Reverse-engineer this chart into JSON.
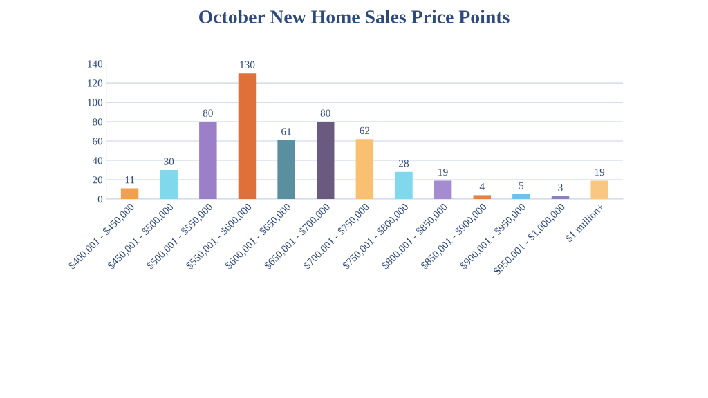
{
  "chart_data": {
    "type": "bar",
    "title": "October New Home Sales Price Points",
    "categories": [
      "$400,001 - $450,000",
      "$450,001 - $500,000",
      "$500,001 - $550,000",
      "$550,001 - $600,000",
      "$600,001 - $650,000",
      "$650,001 - $700,000",
      "$700,001 - $750,000",
      "$750,001 - $800,000",
      "$800,001 - $850,000",
      "$850,001 - $900,000",
      "$900,001 - $950,000",
      "$950,001 - $1,000,000",
      "$1 million+"
    ],
    "values": [
      11,
      30,
      80,
      130,
      61,
      80,
      62,
      28,
      19,
      4,
      5,
      3,
      19
    ],
    "colors": [
      "#f0a050",
      "#80d8ec",
      "#9b7fc9",
      "#e0703a",
      "#5a8fa0",
      "#6a5a80",
      "#f8c070",
      "#80d8ec",
      "#a58cd0",
      "#e88040",
      "#70c0e8",
      "#9080b8",
      "#f8c880"
    ],
    "ylim": [
      0,
      140
    ],
    "yticks": [
      0,
      20,
      40,
      60,
      80,
      100,
      120,
      140
    ],
    "grid": "y",
    "data_labels": true
  }
}
